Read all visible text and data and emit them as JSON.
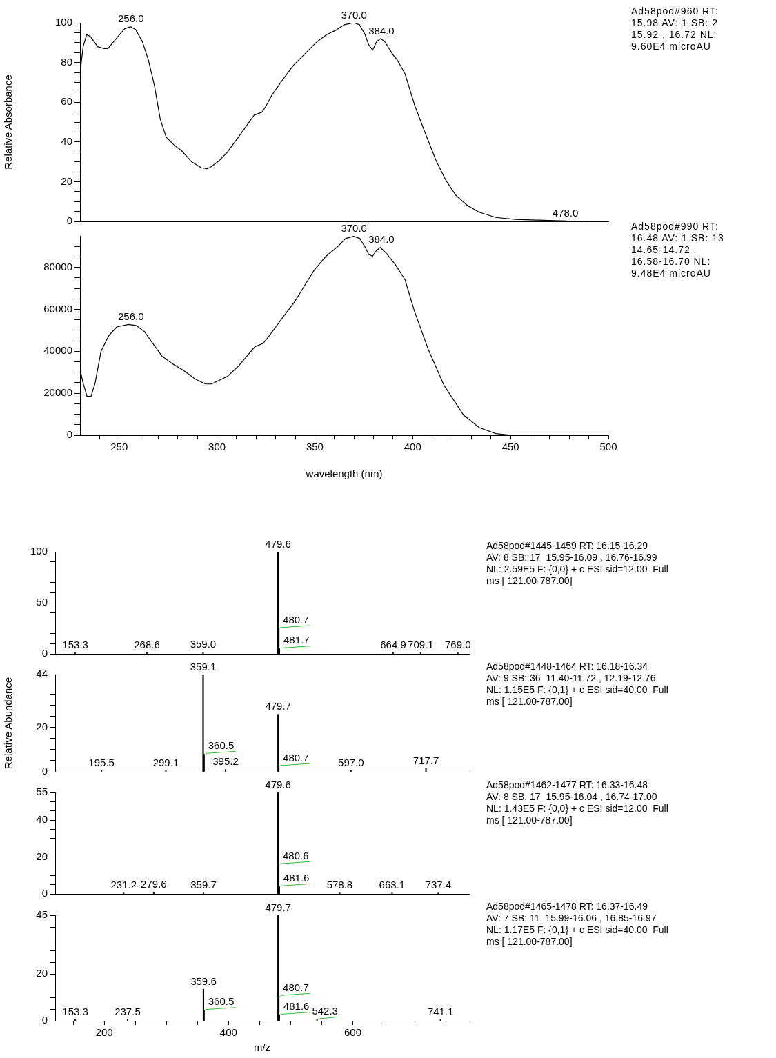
{
  "chart_data": [
    {
      "type": "line",
      "color": "#000000",
      "ylabel": "Relative Absorbance",
      "tick_labels": "y",
      "xlim": [
        230,
        500
      ],
      "ylim": [
        0,
        100
      ],
      "yticks": [
        0,
        {
          "value": 5,
          "label": null
        },
        {
          "value": 10,
          "label": null
        },
        {
          "value": 15,
          "label": null
        },
        20,
        {
          "value": 25,
          "label": null
        },
        {
          "value": 30,
          "label": null
        },
        {
          "value": 35,
          "label": null
        },
        40,
        {
          "value": 45,
          "label": null
        },
        {
          "value": 50,
          "label": null
        },
        {
          "value": 55,
          "label": null
        },
        60,
        {
          "value": 65,
          "label": null
        },
        {
          "value": 70,
          "label": null
        },
        {
          "value": 75,
          "label": null
        },
        80,
        {
          "value": 85,
          "label": null
        },
        {
          "value": 90,
          "label": null
        },
        {
          "value": 95,
          "label": null
        },
        100
      ],
      "x": [
        230,
        231.6,
        233.4,
        235.4,
        239,
        242.3,
        244.3,
        248.8,
        252.8,
        255.8,
        258.4,
        261.9,
        264.9,
        268,
        271,
        274,
        278,
        282,
        287,
        292,
        295,
        297,
        301,
        305,
        311,
        319,
        323,
        325,
        328,
        333,
        339,
        345,
        351,
        356,
        361,
        365,
        369.8,
        372.8,
        375.5,
        377.5,
        379.5,
        381.5,
        383.5,
        385.5,
        390,
        392,
        396,
        401,
        406,
        412,
        417,
        422,
        428,
        434,
        442.5,
        452.5,
        472.7,
        478.8,
        500
      ],
      "values": [
        74.5,
        88,
        94,
        93,
        88,
        87,
        87,
        92.4,
        97,
        98,
        96.6,
        90.4,
        81.4,
        68.5,
        51.5,
        42.5,
        38.5,
        35.5,
        30,
        27,
        26.5,
        27.5,
        30.5,
        34.5,
        42.5,
        53.5,
        55,
        58,
        63.5,
        70.5,
        78.5,
        84.4,
        90.4,
        94,
        96.4,
        99,
        100,
        99,
        94.4,
        89,
        86.2,
        90.4,
        92,
        90.8,
        83.8,
        81.4,
        74.5,
        58.5,
        45.5,
        30.5,
        20.6,
        13.2,
        8,
        4.6,
        2,
        1,
        0.4,
        0.2,
        0
      ],
      "annotations": [
        {
          "text": "256.0",
          "x": 256,
          "y": 98
        },
        {
          "text": "370.0",
          "x": 370,
          "y": 100
        },
        {
          "text": "384.0",
          "x": 384,
          "y": 92
        },
        {
          "text": "478.0",
          "x": 478,
          "y": 0.2
        },
        "Ad58pod#960 RT:\n15.98 AV: 1 SB: 2\n15.92 , 16.72 NL:\n9.60E4 microAU"
      ]
    },
    {
      "type": "line",
      "color": "#000000",
      "xlabel": "wavelength (nm)",
      "xlim": [
        230,
        500
      ],
      "ylim": [
        0,
        95000
      ],
      "xticks": [
        {
          "value": 240,
          "label": null
        },
        250,
        {
          "value": 260,
          "label": null
        },
        {
          "value": 270,
          "label": null
        },
        {
          "value": 280,
          "label": null
        },
        {
          "value": 290,
          "label": null
        },
        300,
        {
          "value": 310,
          "label": null
        },
        {
          "value": 320,
          "label": null
        },
        {
          "value": 330,
          "label": null
        },
        {
          "value": 340,
          "label": null
        },
        350,
        {
          "value": 360,
          "label": null
        },
        {
          "value": 370,
          "label": null
        },
        {
          "value": 380,
          "label": null
        },
        {
          "value": 390,
          "label": null
        },
        400,
        {
          "value": 410,
          "label": null
        },
        {
          "value": 420,
          "label": null
        },
        {
          "value": 430,
          "label": null
        },
        {
          "value": 440,
          "label": null
        },
        450,
        {
          "value": 460,
          "label": null
        },
        {
          "value": 470,
          "label": null
        },
        {
          "value": 480,
          "label": null
        },
        {
          "value": 490,
          "label": null
        },
        500
      ],
      "yticks": [
        0,
        {
          "value": 5000,
          "label": null
        },
        {
          "value": 10000,
          "label": null
        },
        {
          "value": 15000,
          "label": null
        },
        20000,
        {
          "value": 25000,
          "label": null
        },
        {
          "value": 30000,
          "label": null
        },
        {
          "value": 35000,
          "label": null
        },
        40000,
        {
          "value": 45000,
          "label": null
        },
        {
          "value": 50000,
          "label": null
        },
        {
          "value": 55000,
          "label": null
        },
        60000,
        {
          "value": 65000,
          "label": null
        },
        {
          "value": 70000,
          "label": null
        },
        {
          "value": 75000,
          "label": null
        },
        80000,
        {
          "value": 85000,
          "label": null
        },
        {
          "value": 90000,
          "label": null
        }
      ],
      "x": [
        230,
        231.6,
        233.6,
        235.6,
        237.7,
        240.7,
        244.7,
        248.8,
        254.8,
        258.9,
        262.9,
        268,
        272,
        277,
        283,
        289,
        294.2,
        297.2,
        305.3,
        311.3,
        319.4,
        323.5,
        327.5,
        333.5,
        339.6,
        344.6,
        349.7,
        355.7,
        361.8,
        365.8,
        369.8,
        372.9,
        375.5,
        377.5,
        379.5,
        381.5,
        383.5,
        387,
        391,
        396,
        401,
        408,
        416,
        426,
        434,
        442.5,
        450.5,
        500
      ],
      "values": [
        31400,
        24800,
        18500,
        18500,
        24800,
        39900,
        47500,
        51600,
        52800,
        52200,
        49400,
        42700,
        37600,
        34200,
        30800,
        26700,
        24400,
        24400,
        28000,
        33300,
        42200,
        43700,
        48400,
        56000,
        63500,
        71100,
        78700,
        85300,
        90000,
        93800,
        94800,
        93800,
        90000,
        86200,
        85300,
        88100,
        89500,
        86200,
        81500,
        74300,
        58800,
        40800,
        23800,
        9600,
        3600,
        800,
        0,
        0
      ],
      "annotations": [
        {
          "text": "256.0",
          "x": 256,
          "y": 52800
        },
        {
          "text": "370.0",
          "x": 370,
          "y": 94800
        },
        {
          "text": "384.0",
          "x": 384,
          "y": 89500
        },
        "Ad58pod#990 RT:\n16.48 AV: 1 SB: 13\n14.65-14.72 ,\n16.58-16.70 NL:\n9.48E4 microAU"
      ]
    },
    {
      "type": "bar",
      "color": "#000000",
      "tick_labels": "y",
      "xlim": [
        121,
        787
      ],
      "ylim": [
        0,
        100
      ],
      "yticks": [
        0,
        {
          "value": 10,
          "label": null
        },
        {
          "value": 20,
          "label": null
        },
        {
          "value": 30,
          "label": null
        },
        {
          "value": 40,
          "label": null
        },
        50,
        {
          "value": 60,
          "label": null
        },
        {
          "value": 70,
          "label": null
        },
        {
          "value": 80,
          "label": null
        },
        {
          "value": 90,
          "label": null
        },
        100
      ],
      "x": [
        153.3,
        268.6,
        359.0,
        479.6,
        480.7,
        481.7,
        664.9,
        709.1,
        769.0
      ],
      "values": [
        1,
        1,
        1.5,
        100,
        25,
        5,
        1,
        1,
        1
      ],
      "annotations": [
        {
          "text": "153.3",
          "x": 153.3,
          "y": 1
        },
        {
          "text": "268.6",
          "x": 268.6,
          "y": 1
        },
        {
          "text": "359.0",
          "x": 359.0,
          "y": 1.5
        },
        {
          "text": "479.6",
          "x": 479.6,
          "y": 100
        },
        {
          "text": "480.7",
          "x": 480.7,
          "y": 25
        },
        {
          "text": "481.7",
          "x": 481.7,
          "y": 5
        },
        {
          "text": "664.9",
          "x": 664.9,
          "y": 1
        },
        {
          "text": "709.1",
          "x": 709.1,
          "y": 1
        },
        {
          "text": "769.0",
          "x": 769.0,
          "y": 1
        },
        "Ad58pod#1445-1459 RT: 16.15-16.29\nAV: 8 SB: 17  15.95-16.09 , 16.76-16.99\nNL: 2.59E5 F: {0,0} + c ESI sid=12.00  Full\nms [ 121.00-787.00]"
      ]
    },
    {
      "type": "bar",
      "color": "#000000",
      "tick_labels": "y",
      "ylabel": "Relative Abundance",
      "xlim": [
        121,
        787
      ],
      "ylim": [
        0,
        44
      ],
      "yticks": [
        0,
        {
          "value": 5,
          "label": null
        },
        {
          "value": 10,
          "label": null
        },
        {
          "value": 15,
          "label": null
        },
        20,
        {
          "value": 25,
          "label": null
        },
        {
          "value": 30,
          "label": null
        },
        {
          "value": 35,
          "label": null
        },
        {
          "value": 40,
          "label": null
        },
        44
      ],
      "x": [
        195.5,
        299.1,
        359.1,
        360.5,
        395.2,
        479.7,
        480.7,
        597.0,
        717.7
      ],
      "values": [
        0.5,
        0.5,
        44,
        8,
        1,
        26,
        2.5,
        0.5,
        1.5
      ],
      "annotations": [
        {
          "text": "195.5",
          "x": 195.5,
          "y": 0.5
        },
        {
          "text": "299.1",
          "x": 299.1,
          "y": 0.5
        },
        {
          "text": "359.1",
          "x": 359.1,
          "y": 44
        },
        {
          "text": "360.5",
          "x": 360.5,
          "y": 8
        },
        {
          "text": "395.2",
          "x": 395.2,
          "y": 1
        },
        {
          "text": "479.7",
          "x": 479.7,
          "y": 26
        },
        {
          "text": "480.7",
          "x": 480.7,
          "y": 2.5
        },
        {
          "text": "597.0",
          "x": 597.0,
          "y": 0.5
        },
        {
          "text": "717.7",
          "x": 717.7,
          "y": 1.5
        },
        "Ad58pod#1448-1464 RT: 16.18-16.34\nAV: 9 SB: 36  11.40-11.72 , 12.19-12.76\nNL: 1.15E5 F: {0,1} + c ESI sid=40.00  Full\nms [ 121.00-787.00]"
      ]
    },
    {
      "type": "bar",
      "color": "#000000",
      "tick_labels": "y",
      "xlim": [
        121,
        787
      ],
      "ylim": [
        0,
        55
      ],
      "yticks": [
        0,
        {
          "value": 5,
          "label": null
        },
        {
          "value": 10,
          "label": null
        },
        {
          "value": 15,
          "label": null
        },
        20,
        {
          "value": 25,
          "label": null
        },
        {
          "value": 30,
          "label": null
        },
        {
          "value": 35,
          "label": null
        },
        40,
        {
          "value": 45,
          "label": null
        },
        {
          "value": 50,
          "label": null
        },
        55
      ],
      "x": [
        231.2,
        279.6,
        359.7,
        479.6,
        480.6,
        481.6,
        578.8,
        663.1,
        737.4
      ],
      "values": [
        0.5,
        1,
        0.5,
        55,
        16,
        4,
        0.5,
        0.5,
        0.5
      ],
      "annotations": [
        {
          "text": "231.2",
          "x": 231.2,
          "y": 0.5
        },
        {
          "text": "279.6",
          "x": 279.6,
          "y": 1
        },
        {
          "text": "359.7",
          "x": 359.7,
          "y": 0.5
        },
        {
          "text": "479.6",
          "x": 479.6,
          "y": 55
        },
        {
          "text": "480.6",
          "x": 480.6,
          "y": 16
        },
        {
          "text": "481.6",
          "x": 481.6,
          "y": 4
        },
        {
          "text": "578.8",
          "x": 578.8,
          "y": 0.5
        },
        {
          "text": "663.1",
          "x": 663.1,
          "y": 0.5
        },
        {
          "text": "737.4",
          "x": 737.4,
          "y": 0.5
        },
        "Ad58pod#1462-1477 RT: 16.33-16.48\nAV: 8 SB: 17  15.95-16.04 , 16.74-17.00\nNL: 1.43E5 F: {0,0} + c ESI sid=12.00  Full\nms [ 121.00-787.00]"
      ]
    },
    {
      "type": "bar",
      "color": "#000000",
      "xlabel": "m/z",
      "xlim": [
        121,
        787
      ],
      "ylim": [
        0,
        45
      ],
      "xticks": [
        {
          "value": 150,
          "label": null
        },
        200,
        {
          "value": 250,
          "label": null
        },
        {
          "value": 300,
          "label": null
        },
        {
          "value": 350,
          "label": null
        },
        400,
        {
          "value": 450,
          "label": null
        },
        {
          "value": 500,
          "label": null
        },
        {
          "value": 550,
          "label": null
        },
        600,
        {
          "value": 650,
          "label": null
        },
        {
          "value": 700,
          "label": null
        },
        {
          "value": 750,
          "label": null
        }
      ],
      "yticks": [
        0,
        {
          "value": 5,
          "label": null
        },
        {
          "value": 10,
          "label": null
        },
        {
          "value": 15,
          "label": null
        },
        20,
        {
          "value": 25,
          "label": null
        },
        {
          "value": 30,
          "label": null
        },
        {
          "value": 35,
          "label": null
        },
        {
          "value": 40,
          "label": null
        },
        45
      ],
      "x": [
        153.3,
        237.5,
        359.6,
        360.5,
        479.7,
        480.7,
        481.6,
        542.3,
        741.1
      ],
      "values": [
        0.5,
        0.5,
        13.5,
        4.5,
        45,
        10.5,
        2.5,
        0.5,
        0.5
      ],
      "annotations": [
        {
          "text": "153.3",
          "x": 153.3,
          "y": 0.5
        },
        {
          "text": "237.5",
          "x": 237.5,
          "y": 0.5
        },
        {
          "text": "359.6",
          "x": 359.6,
          "y": 13.5
        },
        {
          "text": "360.5",
          "x": 360.5,
          "y": 4.5
        },
        {
          "text": "479.7",
          "x": 479.7,
          "y": 45
        },
        {
          "text": "480.7",
          "x": 480.7,
          "y": 10.5
        },
        {
          "text": "481.6",
          "x": 481.6,
          "y": 2.5
        },
        {
          "text": "542.3",
          "x": 542.3,
          "y": 0.5
        },
        {
          "text": "741.1",
          "x": 741.1,
          "y": 0.5
        },
        "Ad58pod#1465-1478 RT: 16.37-16.49\nAV: 7 SB: 11  15.99-16.06 , 16.85-16.97\nNL: 1.17E5 F: {0,1} + c ESI sid=40.00  Full\nms [ 121.00-787.00]"
      ]
    }
  ]
}
